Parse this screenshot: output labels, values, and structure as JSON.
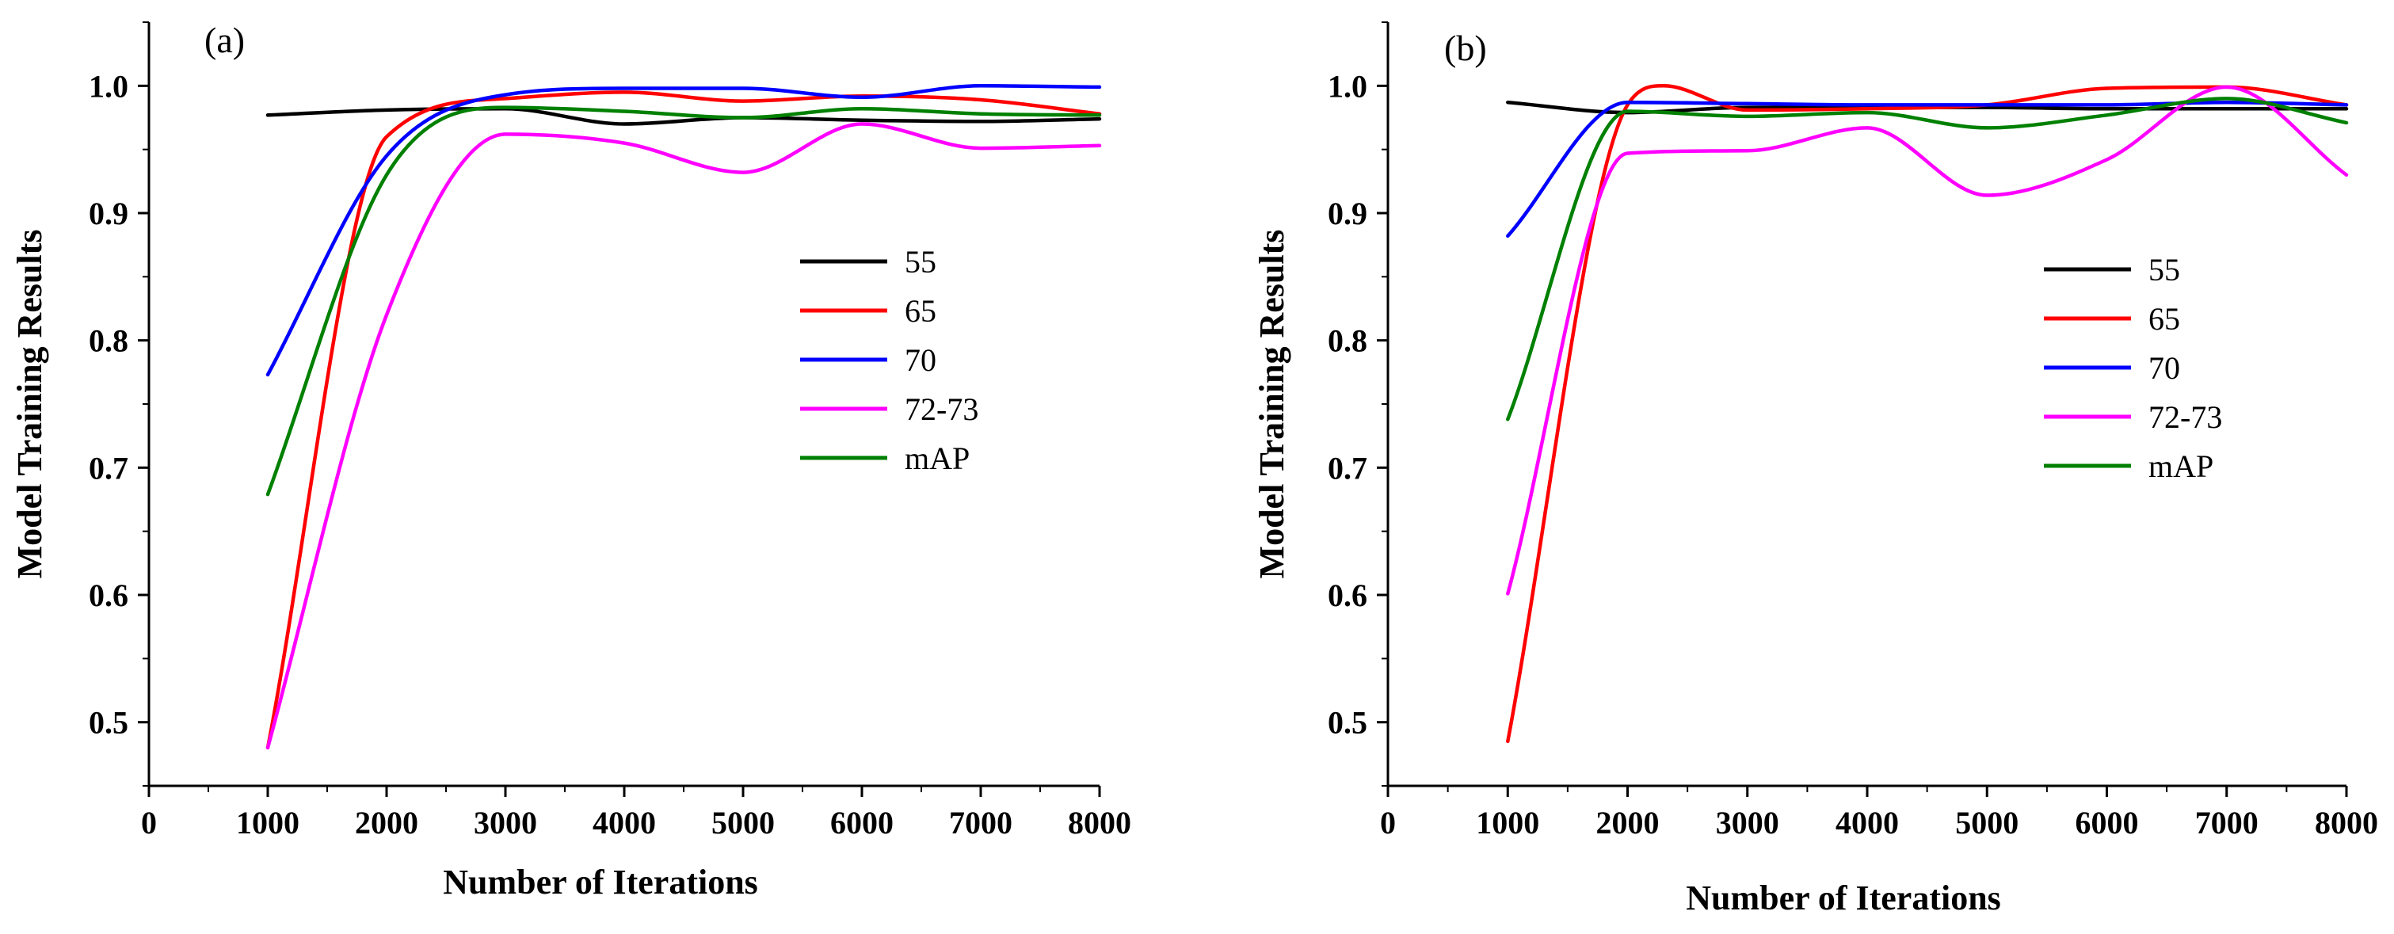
{
  "chart_data": [
    {
      "type": "line",
      "panel_label": "(a)",
      "xlabel": "Number of Iterations",
      "ylabel": "Model Training Results",
      "xlim": [
        0,
        8000
      ],
      "ylim": [
        0.45,
        1.05
      ],
      "xticks": [
        "0",
        "1000",
        "2000",
        "3000",
        "4000",
        "5000",
        "6000",
        "7000",
        "8000"
      ],
      "yticks": [
        "0.5",
        "0.6",
        "0.7",
        "0.8",
        "0.9",
        "1.0"
      ],
      "legend_position": "right-middle",
      "grid": false,
      "series": [
        {
          "name": "55",
          "color": "#000000",
          "x": [
            1000,
            2000,
            3000,
            4000,
            5000,
            6000,
            7000,
            8000
          ],
          "y": [
            0.977,
            0.981,
            0.982,
            0.97,
            0.975,
            0.973,
            0.972,
            0.974
          ]
        },
        {
          "name": "65",
          "color": "#ff0000",
          "x": [
            1000,
            2000,
            3000,
            4000,
            5000,
            6000,
            7000,
            8000
          ],
          "y": [
            0.48,
            0.96,
            0.99,
            0.995,
            0.988,
            0.992,
            0.989,
            0.978
          ]
        },
        {
          "name": "70",
          "color": "#0000ff",
          "x": [
            1000,
            2000,
            3000,
            4000,
            5000,
            6000,
            7000,
            8000
          ],
          "y": [
            0.773,
            0.945,
            0.993,
            0.998,
            0.998,
            0.991,
            1.0,
            0.999
          ]
        },
        {
          "name": "72-73",
          "color": "#ff00ff",
          "x": [
            1000,
            2000,
            3000,
            4000,
            5000,
            6000,
            7000,
            8000
          ],
          "y": [
            0.48,
            0.82,
            0.962,
            0.955,
            0.932,
            0.97,
            0.951,
            0.953
          ]
        },
        {
          "name": "mAP",
          "color": "#008000",
          "x": [
            1000,
            2000,
            3000,
            4000,
            5000,
            6000,
            7000,
            8000
          ],
          "y": [
            0.679,
            0.93,
            0.983,
            0.98,
            0.975,
            0.982,
            0.978,
            0.977
          ]
        }
      ]
    },
    {
      "type": "line",
      "panel_label": "(b)",
      "xlabel": "Number of Iterations",
      "ylabel": "Model Training Results",
      "xlim": [
        0,
        8000
      ],
      "ylim": [
        0.45,
        1.05
      ],
      "xticks": [
        "0",
        "1000",
        "2000",
        "3000",
        "4000",
        "5000",
        "6000",
        "7000",
        "8000"
      ],
      "yticks": [
        "0.5",
        "0.6",
        "0.7",
        "0.8",
        "0.9",
        "1.0"
      ],
      "legend_position": "right-middle",
      "grid": false,
      "series": [
        {
          "name": "55",
          "color": "#000000",
          "x": [
            1000,
            2000,
            3000,
            4000,
            5000,
            6000,
            7000,
            8000
          ],
          "y": [
            0.987,
            0.979,
            0.983,
            0.983,
            0.983,
            0.982,
            0.982,
            0.982
          ]
        },
        {
          "name": "65",
          "color": "#ff0000",
          "x": [
            1000,
            2000,
            2300,
            3000,
            4000,
            5000,
            6000,
            7000,
            8000
          ],
          "y": [
            0.485,
            0.985,
            1.0,
            0.981,
            0.982,
            0.985,
            0.998,
            0.999,
            0.985
          ]
        },
        {
          "name": "70",
          "color": "#0000ff",
          "x": [
            1000,
            2000,
            3000,
            4000,
            5000,
            6000,
            7000,
            8000
          ],
          "y": [
            0.882,
            0.987,
            0.986,
            0.985,
            0.985,
            0.985,
            0.987,
            0.985
          ]
        },
        {
          "name": "72-73",
          "color": "#ff00ff",
          "x": [
            1000,
            2000,
            3000,
            4000,
            5000,
            6000,
            7000,
            8000
          ],
          "y": [
            0.601,
            0.947,
            0.949,
            0.967,
            0.914,
            0.942,
            0.999,
            0.93
          ]
        },
        {
          "name": "mAP",
          "color": "#008000",
          "x": [
            1000,
            2000,
            3000,
            4000,
            5000,
            6000,
            7000,
            8000
          ],
          "y": [
            0.738,
            0.98,
            0.976,
            0.979,
            0.967,
            0.977,
            0.99,
            0.971
          ]
        }
      ]
    }
  ]
}
